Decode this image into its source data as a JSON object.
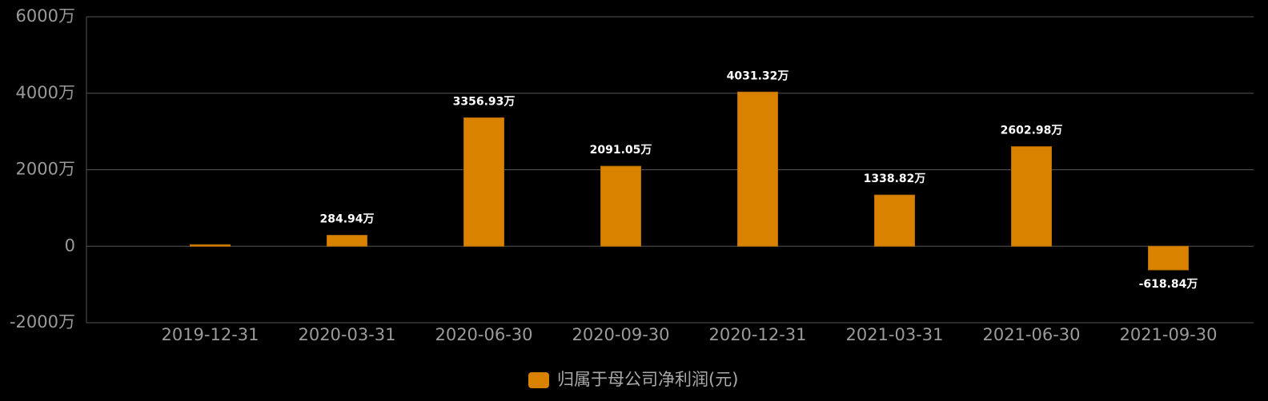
{
  "chart_data": {
    "type": "bar",
    "categories": [
      "2019-12-31",
      "2020-03-31",
      "2020-06-30",
      "2020-09-30",
      "2020-12-31",
      "2021-03-31",
      "2021-06-30",
      "2021-09-30"
    ],
    "series": [
      {
        "name": "归属于母公司净利润(元)",
        "color": "#d98200",
        "values": [
          40,
          284.94,
          3356.93,
          2091.05,
          4031.32,
          1338.82,
          2602.98,
          -618.84
        ],
        "value_labels": [
          null,
          "284.94万",
          "3356.93万",
          "2091.05万",
          "4031.32万",
          "1338.82万",
          "2602.98万",
          "-618.84万"
        ]
      }
    ],
    "ylim": [
      -2000,
      6000
    ],
    "yticks": [
      {
        "value": -2000,
        "label": "-2000万"
      },
      0,
      {
        "value": 2000,
        "label": "2000万"
      },
      {
        "value": 4000,
        "label": "4000万"
      },
      {
        "value": 6000,
        "label": "6000万"
      }
    ],
    "grid": true,
    "legend": "bottom"
  }
}
